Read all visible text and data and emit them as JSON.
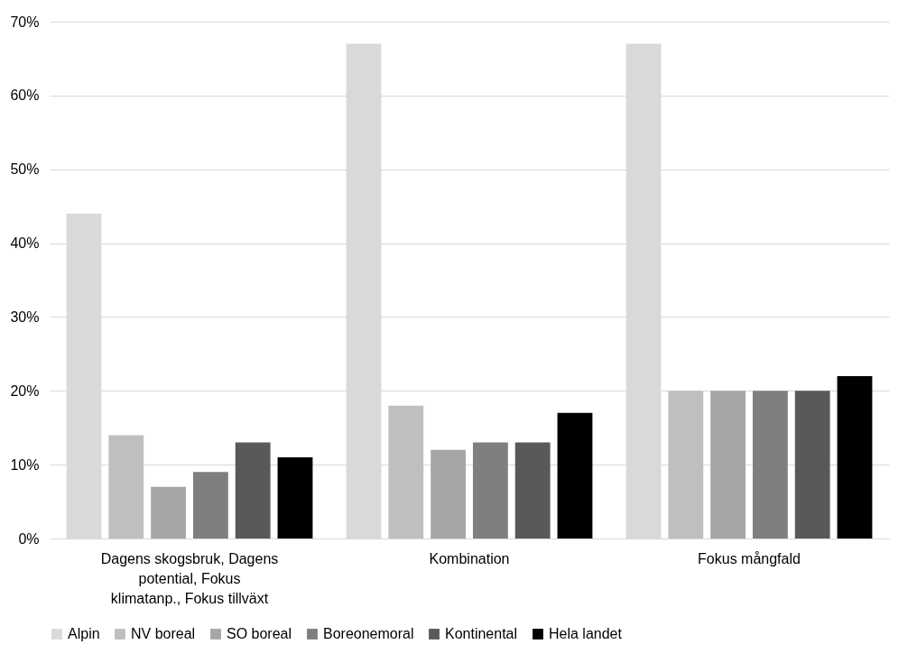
{
  "chart_data": {
    "type": "bar",
    "categories": [
      "Dagens skogsbruk, Dagens potential, Fokus klimatanp., Fokus tillväxt",
      "Kombination",
      "Fokus mångfald"
    ],
    "series": [
      {
        "name": "Alpin",
        "color": "#d9d9d9",
        "values": [
          44,
          67,
          67
        ]
      },
      {
        "name": "NV boreal",
        "color": "#bfbfbf",
        "values": [
          14,
          18,
          20
        ]
      },
      {
        "name": "SO boreal",
        "color": "#a6a6a6",
        "values": [
          7,
          12,
          20
        ]
      },
      {
        "name": "Boreonemoral",
        "color": "#7f7f7f",
        "values": [
          9,
          13,
          20
        ]
      },
      {
        "name": "Kontinental",
        "color": "#595959",
        "values": [
          13,
          13,
          20
        ]
      },
      {
        "name": "Hela landet",
        "color": "#000000",
        "values": [
          11,
          17,
          22
        ]
      }
    ],
    "ylim": [
      0,
      70
    ],
    "yticks": [
      {
        "value": 0,
        "label": "0%"
      },
      {
        "value": 10,
        "label": "10%"
      },
      {
        "value": 20,
        "label": "20%"
      },
      {
        "value": 30,
        "label": "30%"
      },
      {
        "value": 40,
        "label": "40%"
      },
      {
        "value": 50,
        "label": "50%"
      },
      {
        "value": 60,
        "label": "60%"
      },
      {
        "value": 70,
        "label": "70%"
      }
    ],
    "grid": "y",
    "legend": "bottom"
  }
}
